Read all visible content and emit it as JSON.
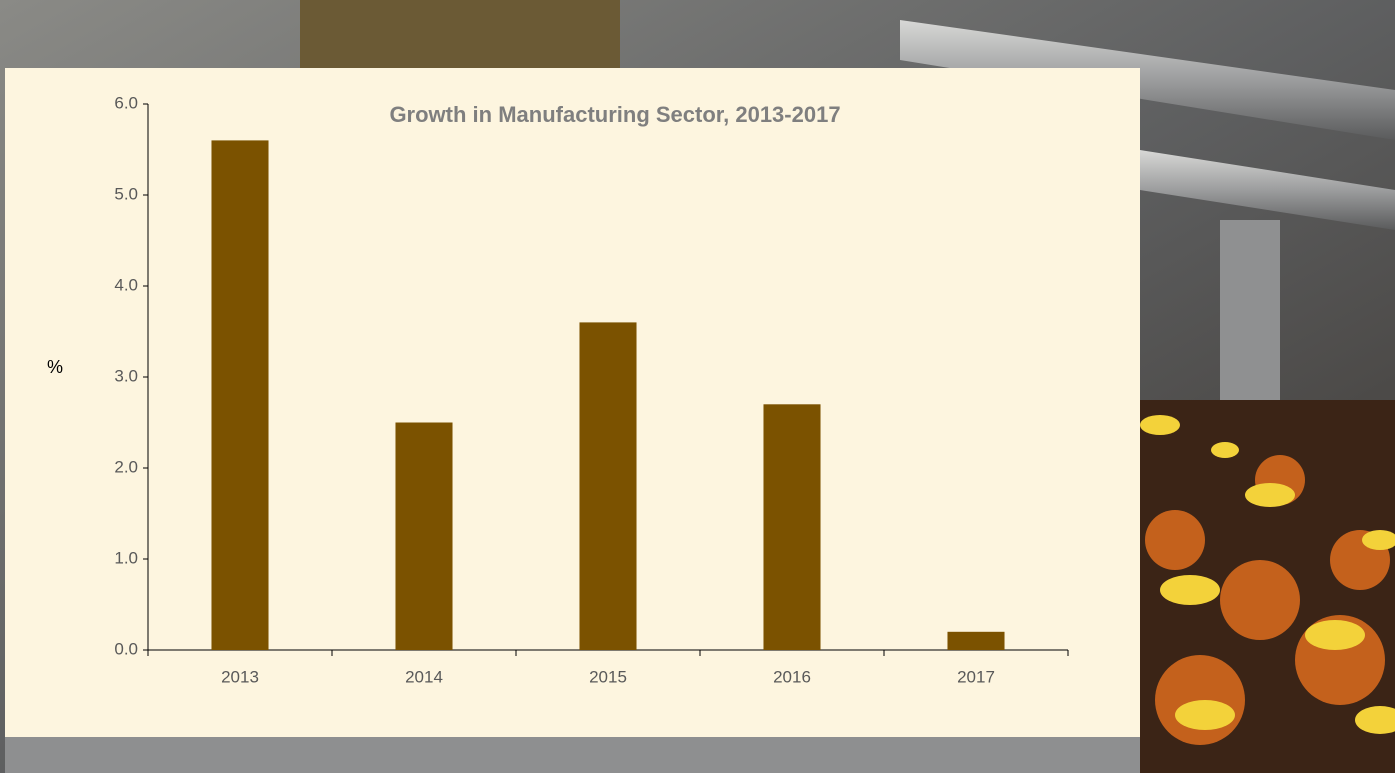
{
  "chart_data": {
    "type": "bar",
    "title": "Growth in Manufacturing Sector, 2013-2017",
    "y_label": "%",
    "categories": [
      "2013",
      "2014",
      "2015",
      "2016",
      "2017"
    ],
    "values": [
      5.6,
      2.5,
      3.6,
      2.7,
      0.2
    ],
    "color": "#7b5200",
    "ylim": [
      0,
      6
    ],
    "yticks": [
      {
        "value": 0,
        "label": "0.0"
      },
      {
        "value": 1,
        "label": "1.0"
      },
      {
        "value": 2,
        "label": "2.0"
      },
      {
        "value": 3,
        "label": "3.0"
      },
      {
        "value": 4,
        "label": "4.0"
      },
      {
        "value": 5,
        "label": "5.0"
      },
      {
        "value": 6,
        "label": "6.0"
      }
    ],
    "grid": false
  }
}
